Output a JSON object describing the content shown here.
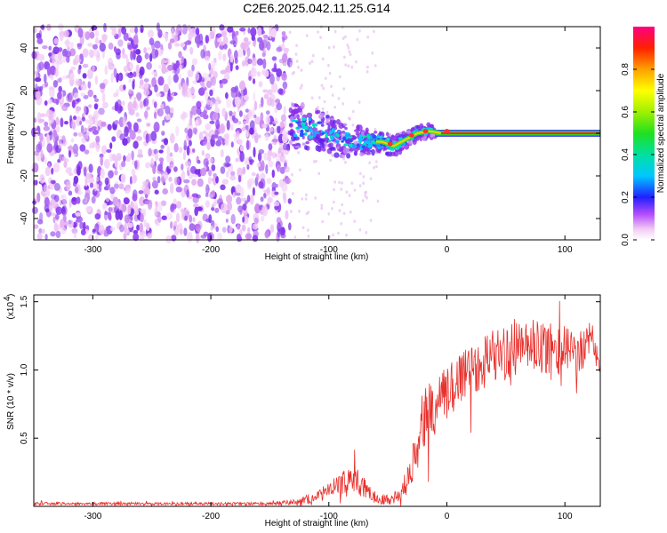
{
  "title": "C2E6.2025.042.11.25.G14",
  "colors": {
    "series": "#e8302c",
    "axis": "#000000"
  },
  "chart_data": [
    {
      "type": "heatmap",
      "name": "spectrogram",
      "xlabel": "Height of straight line (km)",
      "ylabel": "Frequency (Hz)",
      "xlim": [
        -350,
        130
      ],
      "ylim": [
        -50,
        50
      ],
      "xticks": [
        -300,
        -200,
        -100,
        0,
        100
      ],
      "xtick_labels": [
        "-300",
        "-200",
        "-100",
        "0",
        "100"
      ],
      "yticks": [
        -40,
        -20,
        0,
        20,
        40
      ],
      "ytick_labels": [
        "-40",
        "-20",
        "0",
        "20",
        "40"
      ],
      "noise_region": [
        -350,
        -133
      ],
      "signal_track": {
        "x": [
          -133,
          -110,
          -90,
          -70,
          -55,
          -45,
          -35,
          -25,
          -15,
          -5,
          0,
          10,
          130
        ],
        "y": [
          4,
          2,
          -3,
          -4,
          -4,
          -6,
          -3,
          0,
          1,
          0,
          0,
          0,
          0
        ]
      },
      "colorbar": {
        "label": "Normalized spectral amplitude",
        "range": [
          0,
          1
        ],
        "ticks": [
          0,
          0.2,
          0.4,
          0.6,
          0.8
        ],
        "tick_labels": [
          "0.0",
          "0.2",
          "0.4",
          "0.6",
          "0.8"
        ]
      }
    },
    {
      "type": "line",
      "name": "snr",
      "xlabel": "Height of straight line (km)",
      "ylabel": "SNR (10 * v/v)",
      "multiplier": "(x10",
      "multiplier_exp": "4",
      "xlim": [
        -350,
        130
      ],
      "ylim": [
        0,
        1.55
      ],
      "xticks": [
        -300,
        -200,
        -100,
        0,
        100
      ],
      "xtick_labels": [
        "-300",
        "-200",
        "-100",
        "0",
        "100"
      ],
      "yticks": [
        0.5,
        1.0,
        1.5
      ],
      "ytick_labels": [
        "0.5",
        "1.0",
        "1.5"
      ],
      "envelope": {
        "x": [
          -350,
          -150,
          -130,
          -110,
          -100,
          -90,
          -80,
          -70,
          -60,
          -50,
          -40,
          -30,
          -25,
          -20,
          -10,
          0,
          10,
          20,
          30,
          40,
          50,
          60,
          70,
          80,
          90,
          100,
          110,
          120,
          130
        ],
        "mid": [
          0.02,
          0.02,
          0.03,
          0.07,
          0.12,
          0.16,
          0.22,
          0.13,
          0.06,
          0.05,
          0.08,
          0.25,
          0.55,
          0.65,
          0.72,
          0.82,
          0.95,
          1.02,
          1.05,
          1.12,
          1.12,
          1.15,
          1.18,
          1.15,
          1.13,
          1.15,
          1.12,
          1.2,
          1.1
        ],
        "amp": [
          0.01,
          0.01,
          0.02,
          0.04,
          0.06,
          0.08,
          0.1,
          0.08,
          0.04,
          0.04,
          0.06,
          0.12,
          0.2,
          0.22,
          0.22,
          0.22,
          0.22,
          0.22,
          0.2,
          0.2,
          0.2,
          0.2,
          0.2,
          0.2,
          0.18,
          0.18,
          0.16,
          0.16,
          0.16
        ]
      }
    }
  ]
}
